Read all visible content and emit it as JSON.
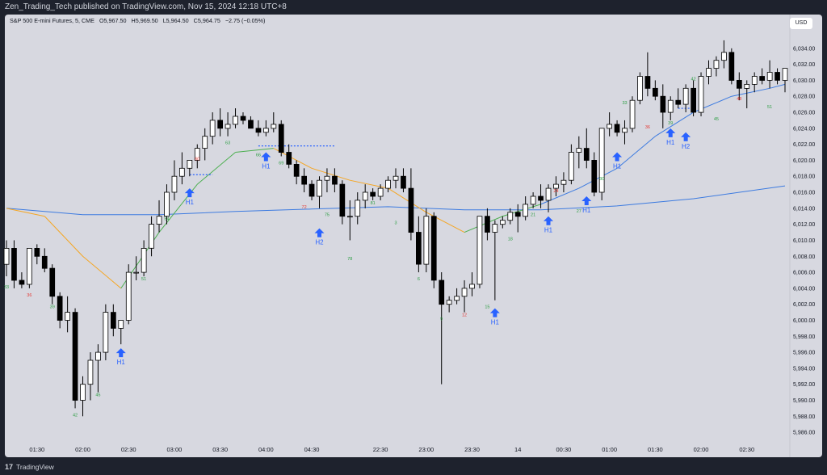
{
  "header": {
    "published_line": "Zen_Trading_Tech published on TradingView.com, Nov 15, 2024 12:18 UTC+8"
  },
  "legend": {
    "symbol": "S&P 500 E-mini Futures, 5, CME",
    "open": "O5,967.50",
    "high": "H5,969.50",
    "low": "L5,964.50",
    "close": "C5,964.75",
    "change": "−2.75 (−0.05%)"
  },
  "currency_label": "USD",
  "footer": {
    "brand": "TradingView",
    "logo_mark": "17"
  },
  "colors": {
    "background": "#d7d8e0",
    "bull_candle": "#ffffff",
    "bear_candle": "#000000",
    "ema_short_up": "#4caf50",
    "ema_short_down": "#f5a623",
    "ema_mid": "#3d7be0",
    "ema_long": "#3d7be0",
    "signal_arrow": "#2962ff",
    "count_green": "#2e9e44",
    "count_red": "#e53935"
  },
  "chart_data": {
    "type": "candlestick",
    "ylim": [
      5985,
      6036
    ],
    "y_ticks": [
      "6,034.00",
      "6,032.00",
      "6,030.00",
      "6,028.00",
      "6,026.00",
      "6,024.00",
      "6,022.00",
      "6,020.00",
      "6,018.00",
      "6,016.00",
      "6,014.00",
      "6,012.00",
      "6,010.00",
      "6,008.00",
      "6,006.00",
      "6,004.00",
      "6,002.00",
      "6,000.00",
      "5,998.00",
      "5,996.00",
      "5,994.00",
      "5,992.00",
      "5,990.00",
      "5,988.00",
      "5,986.00"
    ],
    "x_ticks": [
      {
        "bar": 4,
        "label": "01:30"
      },
      {
        "bar": 10,
        "label": "02:00"
      },
      {
        "bar": 16,
        "label": "02:30"
      },
      {
        "bar": 22,
        "label": "03:00"
      },
      {
        "bar": 28,
        "label": "03:30"
      },
      {
        "bar": 34,
        "label": "04:00"
      },
      {
        "bar": 40,
        "label": "04:30"
      },
      {
        "bar": 49,
        "label": "22:30"
      },
      {
        "bar": 55,
        "label": "23:00"
      },
      {
        "bar": 61,
        "label": "23:30"
      },
      {
        "bar": 67,
        "label": "14"
      },
      {
        "bar": 73,
        "label": "00:30"
      },
      {
        "bar": 79,
        "label": "01:00"
      },
      {
        "bar": 85,
        "label": "01:30"
      },
      {
        "bar": 91,
        "label": "02:00"
      },
      {
        "bar": 97,
        "label": "02:30"
      }
    ],
    "candles": [
      [
        6007,
        6010,
        6005.5,
        6009
      ],
      [
        6009,
        6010,
        6004,
        6005
      ],
      [
        6005,
        6006,
        6004,
        6004.5
      ],
      [
        6004.5,
        6009,
        6004,
        6009
      ],
      [
        6009,
        6009.5,
        6007,
        6008
      ],
      [
        6008,
        6009,
        6006,
        6006.5
      ],
      [
        6006.5,
        6007,
        6002,
        6003
      ],
      [
        6003,
        6003.5,
        5999,
        6000
      ],
      [
        6000,
        6003,
        5998.5,
        6001
      ],
      [
        6001,
        6001.5,
        5989,
        5990
      ],
      [
        5990,
        5993,
        5988,
        5992
      ],
      [
        5992,
        5996,
        5990,
        5995
      ],
      [
        5995,
        5997,
        5991,
        5996
      ],
      [
        5996,
        6002,
        5995,
        6001
      ],
      [
        6001,
        6002,
        5998,
        5999
      ],
      [
        5999,
        6000,
        5997,
        6000
      ],
      [
        6000,
        6007,
        5999.5,
        6006
      ],
      [
        6006,
        6008,
        6005,
        6006
      ],
      [
        6006,
        6010,
        6005.5,
        6009
      ],
      [
        6009,
        6013,
        6008,
        6012
      ],
      [
        6012,
        6015,
        6011,
        6013
      ],
      [
        6013,
        6017,
        6012,
        6016
      ],
      [
        6016,
        6020,
        6015,
        6018
      ],
      [
        6018,
        6021,
        6017,
        6019
      ],
      [
        6019,
        6020,
        6018,
        6020
      ],
      [
        6020,
        6022,
        6019,
        6021.5
      ],
      [
        6021.5,
        6024,
        6020,
        6023
      ],
      [
        6023,
        6026,
        6022,
        6025
      ],
      [
        6025,
        6026.5,
        6023,
        6024
      ],
      [
        6024,
        6026,
        6023,
        6024.5
      ],
      [
        6024.5,
        6026.5,
        6024,
        6025.5
      ],
      [
        6025.5,
        6026,
        6024.5,
        6025
      ],
      [
        6025,
        6025.5,
        6024,
        6024
      ],
      [
        6024,
        6025,
        6023,
        6023.5
      ],
      [
        6023.5,
        6025,
        6023,
        6024
      ],
      [
        6024,
        6026,
        6023.5,
        6024.5
      ],
      [
        6024.5,
        6025,
        6020.5,
        6021
      ],
      [
        6021,
        6022,
        6019,
        6019.5
      ],
      [
        6019.5,
        6020,
        6017,
        6018
      ],
      [
        6018,
        6019,
        6016,
        6017
      ],
      [
        6017,
        6017.5,
        6015,
        6015.5
      ],
      [
        6015.5,
        6018,
        6014,
        6017.5
      ],
      [
        6017.5,
        6019,
        6016,
        6018
      ],
      [
        6018,
        6019,
        6016,
        6017
      ],
      [
        6017,
        6017.5,
        6012,
        6013
      ],
      [
        6013,
        6015,
        6010,
        6013
      ],
      [
        6013,
        6016,
        6012,
        6015
      ],
      [
        6015,
        6017,
        6014,
        6016
      ],
      [
        6016,
        6016.5,
        6015,
        6015.5
      ],
      [
        6015.5,
        6017,
        6015,
        6016.5
      ],
      [
        6016.5,
        6018,
        6016,
        6017.5
      ],
      [
        6017.5,
        6019,
        6016.5,
        6018
      ],
      [
        6018,
        6019,
        6016,
        6016.5
      ],
      [
        6016.5,
        6019,
        6010,
        6011
      ],
      [
        6011,
        6013,
        6006,
        6007
      ],
      [
        6007,
        6014,
        6006,
        6013
      ],
      [
        6013,
        6013.5,
        6004,
        6005
      ],
      [
        6005,
        6006,
        5992,
        6002
      ],
      [
        6002,
        6003,
        6001,
        6002.5
      ],
      [
        6002.5,
        6004,
        6002,
        6003
      ],
      [
        6003,
        6005,
        6001,
        6004
      ],
      [
        6004,
        6006,
        6003,
        6004.5
      ],
      [
        6004.5,
        6013,
        6004,
        6013
      ],
      [
        6013,
        6014,
        6010,
        6011
      ],
      [
        6011,
        6012.5,
        6002.5,
        6012
      ],
      [
        6012,
        6013,
        6011.5,
        6012.5
      ],
      [
        6012.5,
        6014,
        6012,
        6013.5
      ],
      [
        6013.5,
        6014.5,
        6011,
        6013
      ],
      [
        6013,
        6015.5,
        6012.5,
        6014.5
      ],
      [
        6014.5,
        6016,
        6014,
        6015.5
      ],
      [
        6015.5,
        6017,
        6014,
        6015
      ],
      [
        6015,
        6017,
        6013.5,
        6016.5
      ],
      [
        6016.5,
        6018,
        6015.5,
        6017
      ],
      [
        6017,
        6018.5,
        6016,
        6017.5
      ],
      [
        6017.5,
        6022,
        6017,
        6021
      ],
      [
        6021,
        6023,
        6019,
        6021.5
      ],
      [
        6021.5,
        6024,
        6019,
        6020
      ],
      [
        6020,
        6021,
        6015.5,
        6016
      ],
      [
        6016,
        6024,
        6015,
        6024
      ],
      [
        6024,
        6026,
        6023,
        6024.5
      ],
      [
        6024.5,
        6025,
        6023,
        6023.5
      ],
      [
        6023.5,
        6025,
        6022,
        6024
      ],
      [
        6024,
        6028,
        6023.5,
        6027.5
      ],
      [
        6027.5,
        6031,
        6027,
        6030.5
      ],
      [
        6030.5,
        6033.5,
        6028,
        6029
      ],
      [
        6029,
        6030,
        6027.5,
        6028
      ],
      [
        6028,
        6029.5,
        6024,
        6026
      ],
      [
        6026,
        6028,
        6025,
        6027.5
      ],
      [
        6027.5,
        6029,
        6026.5,
        6027
      ],
      [
        6027,
        6029.5,
        6026,
        6029
      ],
      [
        6029,
        6030,
        6025.5,
        6026
      ],
      [
        6026,
        6031,
        6025.5,
        6030.5
      ],
      [
        6030.5,
        6032.5,
        6029.5,
        6031.5
      ],
      [
        6031.5,
        6033,
        6030.5,
        6032.5
      ],
      [
        6032.5,
        6035,
        6031.5,
        6033.5
      ],
      [
        6033.5,
        6034,
        6029.5,
        6030
      ],
      [
        6030,
        6031,
        6027.5,
        6029
      ],
      [
        6029,
        6030,
        6026.5,
        6029.5
      ],
      [
        6029.5,
        6031,
        6028.5,
        6030.5
      ],
      [
        6030.5,
        6031.5,
        6029.5,
        6030
      ],
      [
        6030,
        6032.5,
        6029,
        6031
      ],
      [
        6031,
        6031.5,
        6029.5,
        6030
      ],
      [
        6030,
        6031.5,
        6028.5,
        6031.5
      ]
    ],
    "ema_short": [
      [
        0,
        6014
      ],
      [
        5,
        6013
      ],
      [
        10,
        6008
      ],
      [
        15,
        6004
      ],
      [
        20,
        6011
      ],
      [
        25,
        6017
      ],
      [
        30,
        6021
      ],
      [
        35,
        6021.5
      ],
      [
        40,
        6019
      ],
      [
        45,
        6017.5
      ],
      [
        50,
        6016.5
      ],
      [
        55,
        6013.5
      ],
      [
        60,
        6011
      ],
      [
        65,
        6013
      ],
      [
        70,
        6014.5
      ],
      [
        75,
        6016.5
      ],
      [
        80,
        6019
      ],
      [
        85,
        6023
      ],
      [
        90,
        6026
      ],
      [
        95,
        6028
      ],
      [
        100,
        6029
      ],
      [
        102,
        6029.5
      ]
    ],
    "ema_short_turn_bar": 53,
    "ema_long": [
      [
        0,
        6014
      ],
      [
        10,
        6013.2
      ],
      [
        20,
        6013.2
      ],
      [
        30,
        6013.6
      ],
      [
        40,
        6013.9
      ],
      [
        50,
        6014.2
      ],
      [
        60,
        6013.8
      ],
      [
        70,
        6013.8
      ],
      [
        80,
        6014.3
      ],
      [
        90,
        6015.2
      ],
      [
        102,
        6016.8
      ]
    ],
    "bar_counts": [
      {
        "bar": 0,
        "label": "33",
        "y": 6004,
        "color": "green"
      },
      {
        "bar": 3,
        "label": "36",
        "y": 6003,
        "color": "red"
      },
      {
        "bar": 6,
        "label": "39",
        "y": 6001.5,
        "color": "green"
      },
      {
        "bar": 9,
        "label": "42",
        "y": 5988,
        "color": "green"
      },
      {
        "bar": 12,
        "label": "45",
        "y": 5990.5,
        "color": "green"
      },
      {
        "bar": 18,
        "label": "51",
        "y": 6005,
        "color": "green"
      },
      {
        "bar": 21,
        "label": "54",
        "y": 6012.5,
        "color": "green"
      },
      {
        "bar": 25,
        "label": "60",
        "y": 6020,
        "color": "red"
      },
      {
        "bar": 29,
        "label": "63",
        "y": 6022,
        "color": "green"
      },
      {
        "bar": 33,
        "label": "66",
        "y": 6020.5,
        "color": "green"
      },
      {
        "bar": 36,
        "label": "69",
        "y": 6019.5,
        "color": "green"
      },
      {
        "bar": 39,
        "label": "72",
        "y": 6014,
        "color": "red"
      },
      {
        "bar": 42,
        "label": "75",
        "y": 6013,
        "color": "green"
      },
      {
        "bar": 45,
        "label": "78",
        "y": 6007.5,
        "color": "green"
      },
      {
        "bar": 48,
        "label": "81",
        "y": 6014.5,
        "color": "green"
      },
      {
        "bar": 51,
        "label": "3",
        "y": 6012,
        "color": "green"
      },
      {
        "bar": 54,
        "label": "6",
        "y": 6005,
        "color": "green"
      },
      {
        "bar": 57,
        "label": "9",
        "y": 6000,
        "color": "green"
      },
      {
        "bar": 60,
        "label": "12",
        "y": 6000.5,
        "color": "red"
      },
      {
        "bar": 63,
        "label": "15",
        "y": 6001.5,
        "color": "green"
      },
      {
        "bar": 66,
        "label": "18",
        "y": 6010,
        "color": "green"
      },
      {
        "bar": 69,
        "label": "21",
        "y": 6013,
        "color": "green"
      },
      {
        "bar": 72,
        "label": "24",
        "y": 6016,
        "color": "red"
      },
      {
        "bar": 75,
        "label": "27",
        "y": 6013.5,
        "color": "green"
      },
      {
        "bar": 78,
        "label": "30",
        "y": 6017.5,
        "color": "green"
      },
      {
        "bar": 81,
        "label": "33",
        "y": 6027,
        "color": "green"
      },
      {
        "bar": 84,
        "label": "36",
        "y": 6024,
        "color": "red"
      },
      {
        "bar": 87,
        "label": "39",
        "y": 6024.5,
        "color": "green"
      },
      {
        "bar": 90,
        "label": "42",
        "y": 6030,
        "color": "green"
      },
      {
        "bar": 93,
        "label": "45",
        "y": 6025,
        "color": "green"
      },
      {
        "bar": 96,
        "label": "48",
        "y": 6027.5,
        "color": "red"
      },
      {
        "bar": 100,
        "label": "51",
        "y": 6026.5,
        "color": "green"
      }
    ],
    "signals": [
      {
        "bar": 15,
        "label": "H1",
        "y": 5996.5
      },
      {
        "bar": 24,
        "label": "H1",
        "y": 6016.5
      },
      {
        "bar": 34,
        "label": "H1",
        "y": 6021
      },
      {
        "bar": 41,
        "label": "H2",
        "y": 6011.5
      },
      {
        "bar": 64,
        "label": "H1",
        "y": 6001.5
      },
      {
        "bar": 71,
        "label": "H1",
        "y": 6013
      },
      {
        "bar": 76,
        "label": "H1",
        "y": 6015.5
      },
      {
        "bar": 80,
        "label": "H1",
        "y": 6021
      },
      {
        "bar": 87,
        "label": "H1",
        "y": 6024
      },
      {
        "bar": 89,
        "label": "H2",
        "y": 6023.5
      }
    ],
    "dotted_levels": [
      {
        "from_bar": 24,
        "to_bar": 27,
        "y": 6018.2
      },
      {
        "from_bar": 33,
        "to_bar": 43,
        "y": 6021.8
      },
      {
        "from_bar": 88,
        "to_bar": 90,
        "y": 6026.5
      }
    ]
  }
}
